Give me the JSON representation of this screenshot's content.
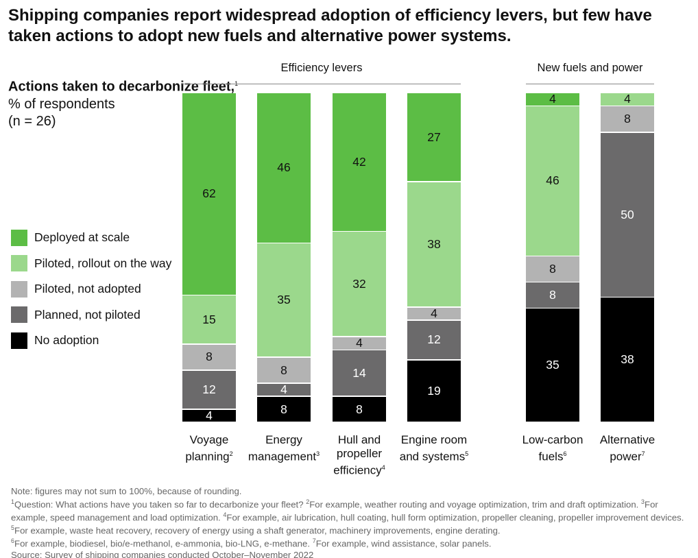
{
  "title": "Shipping companies report widespread adoption of efficiency levers, but few have taken actions to adopt new fuels and alternative power systems.",
  "chart_data": {
    "type": "bar",
    "stacked": true,
    "ylabel_bold": "Actions taken to decarbonize fleet,",
    "ylabel_sup": "1",
    "ylabel_unit": "% of respondents",
    "ylabel_n": "(n = 26)",
    "groups": [
      {
        "label": "Efficiency levers",
        "count": 4
      },
      {
        "label": "New fuels and power",
        "count": 2
      }
    ],
    "categories": [
      {
        "label": "Voyage planning",
        "sup": "2"
      },
      {
        "label": "Energy management",
        "sup": "3"
      },
      {
        "label": "Hull and propeller efficiency",
        "sup": "4"
      },
      {
        "label": "Engine room and systems",
        "sup": "5"
      },
      {
        "label": "Low-carbon fuels",
        "sup": "6"
      },
      {
        "label": "Alternative power",
        "sup": "7"
      }
    ],
    "series": [
      {
        "name": "Deployed at scale",
        "color": "#5cbd45",
        "text": "#111",
        "values": [
          62,
          46,
          42,
          27,
          4,
          0
        ]
      },
      {
        "name": "Piloted, rollout on the way",
        "color": "#9bd88c",
        "text": "#111",
        "values": [
          15,
          35,
          32,
          38,
          46,
          4
        ]
      },
      {
        "name": "Piloted, not adopted",
        "color": "#b3b3b3",
        "text": "#111",
        "values": [
          8,
          8,
          4,
          4,
          8,
          8
        ]
      },
      {
        "name": "Planned, not piloted",
        "color": "#6b6a6b",
        "text": "#fff",
        "values": [
          12,
          4,
          14,
          12,
          8,
          50
        ]
      },
      {
        "name": "No adoption",
        "color": "#000000",
        "text": "#fff",
        "values": [
          4,
          8,
          8,
          19,
          35,
          38
        ]
      }
    ]
  },
  "footnotes": {
    "note": "Note: figures may not sum to 100%, because of rounding.",
    "f1": "Question: What actions have you taken so far to decarbonize your fleet? ",
    "f2": "For example, weather routing and voyage optimization, trim and draft optimization. ",
    "f3": "For example, speed management and load optimization. ",
    "f4": "For example, air lubrication, hull coating, hull form optimization, propeller cleaning, propeller improvement devices. ",
    "f5": "For example, waste heat recovery, recovery of energy using a shaft generator, machinery improvements, engine derating. ",
    "f6": "For example, biodiesel, bio/e-methanol, e-ammonia, bio-LNG, e-methane. ",
    "f7": "For example, wind assistance, solar panels.",
    "source": "Source: Survey of shipping companies conducted October–November 2022"
  }
}
